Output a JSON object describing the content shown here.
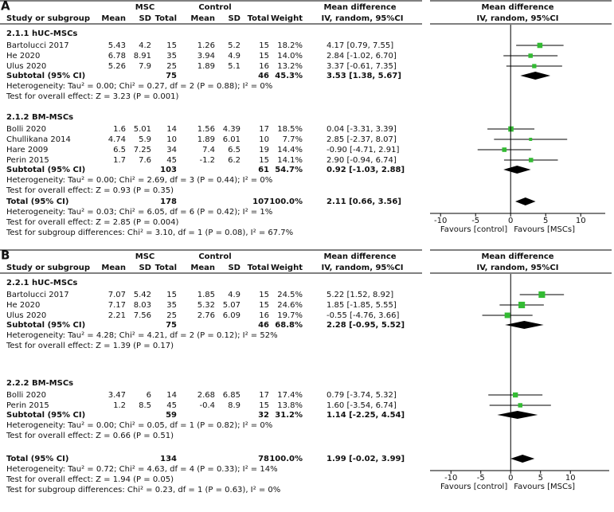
{
  "panels": [
    {
      "letter": "A",
      "group_headers": [
        "MSC",
        "Control",
        "Mean difference",
        "Mean difference"
      ],
      "col_headers": [
        "Study or subgroup",
        "Mean",
        "SD",
        "Total",
        "Mean",
        "SD",
        "Total",
        "Weight",
        "IV, random, 95%CI",
        "IV, random, 95%CI"
      ],
      "subgroups": [
        {
          "name": "2.1.1 hUC-MSCs",
          "studies": [
            {
              "name": "Bartolucci 2017",
              "m1": 5.43,
              "sd1": 4.2,
              "n1": 15,
              "m2": 1.26,
              "sd2": 5.2,
              "n2": 15,
              "weight": {
                "value": 18.2,
                "label": "18.2%"
              },
              "ci": "4.17 [0.79, 7.55]",
              "md": 4.17,
              "lo": 0.79,
              "hi": 7.55
            },
            {
              "name": "He 2020",
              "m1": 6.78,
              "sd1": 8.91,
              "n1": 35,
              "m2": 3.94,
              "sd2": 4.9,
              "n2": 15,
              "weight": {
                "value": 14.0,
                "label": "14.0%"
              },
              "ci": "2.84 [-1.02, 6.70]",
              "md": 2.84,
              "lo": -1.02,
              "hi": 6.7
            },
            {
              "name": "Ulus 2020",
              "m1": 5.26,
              "sd1": 7.9,
              "n1": 25,
              "m2": 1.89,
              "sd2": 5.1,
              "n2": 16,
              "weight": {
                "value": 13.2,
                "label": "13.2%"
              },
              "ci": "3.37 [-0.61, 7.35]",
              "md": 3.37,
              "lo": -0.61,
              "hi": 7.35
            }
          ],
          "subtotal": {
            "label": "Subtotal (95% CI)",
            "n1": 75,
            "n2": 46,
            "weight": {
              "value": 45.3,
              "label": "45.3%"
            },
            "ci": "3.53 [1.38, 5.67]",
            "md": 3.53,
            "lo": 1.38,
            "hi": 5.67
          },
          "heterogeneity": "Heterogeneity: Tau² = 0.00; Chi² = 0.27, df = 2 (P = 0.88); I² = 0%",
          "overall": "Test for overall effect: Z = 3.23 (P = 0.001)"
        },
        {
          "name": "2.1.2 BM-MSCs",
          "studies": [
            {
              "name": "Bolli 2020",
              "m1": 1.6,
              "sd1": 5.01,
              "n1": 14,
              "m2": 1.56,
              "sd2": 4.39,
              "n2": 17,
              "weight": {
                "value": 18.5,
                "label": "18.5%"
              },
              "ci": "0.04 [-3.31, 3.39]",
              "md": 0.04,
              "lo": -3.31,
              "hi": 3.39
            },
            {
              "name": "Chullikana 2014",
              "m1": 4.74,
              "sd1": 5.9,
              "n1": 10,
              "m2": 1.89,
              "sd2": 6.01,
              "n2": 10,
              "weight": {
                "value": 7.7,
                "label": "7.7%"
              },
              "ci": "2.85 [-2.37, 8.07]",
              "md": 2.85,
              "lo": -2.37,
              "hi": 8.07
            },
            {
              "name": "Hare 2009",
              "m1": 6.5,
              "sd1": 7.25,
              "n1": 34,
              "m2": 7.4,
              "sd2": 6.5,
              "n2": 19,
              "weight": {
                "value": 14.4,
                "label": "14.4%"
              },
              "ci": "-0.90 [-4.71, 2.91]",
              "md": -0.9,
              "lo": -4.71,
              "hi": 2.91
            },
            {
              "name": "Perin 2015",
              "m1": 1.7,
              "sd1": 7.6,
              "n1": 45,
              "m2": -1.2,
              "sd2": 6.2,
              "n2": 15,
              "weight": {
                "value": 14.1,
                "label": "14.1%"
              },
              "ci": "2.90 [-0.94, 6.74]",
              "md": 2.9,
              "lo": -0.94,
              "hi": 6.74
            }
          ],
          "subtotal": {
            "label": "Subtotal (95% CI)",
            "n1": 103,
            "n2": 61,
            "weight": {
              "value": 54.7,
              "label": "54.7%"
            },
            "ci": "0.92 [-1.03, 2.88]",
            "md": 0.92,
            "lo": -1.03,
            "hi": 2.88
          },
          "heterogeneity": "Heterogeneity: Tau² = 0.00; Chi² = 2.69, df = 3 (P = 0.44); I² = 0%",
          "overall": "Test for overall effect: Z = 0.93 (P = 0.35)"
        }
      ],
      "total": {
        "label": "Total (95% CI)",
        "n1": 178,
        "n2": 107,
        "weight": {
          "value": 100.0,
          "label": "100.0%"
        },
        "ci": "2.11 [0.66, 3.56]",
        "md": 2.11,
        "lo": 0.66,
        "hi": 3.56
      },
      "heterogeneity": "Heterogeneity: Tau² = 0.03; Chi² = 6.05, df = 6 (P = 0.42); I² = 1%",
      "overall": "Test for overall effect: Z = 2.85 (P = 0.004)",
      "subgroup_diff": "Test for subgroup differences: Chi² = 3.10, df = 1 (P = 0.08), I² = 67.7%",
      "xlim": [
        -11.5,
        13.5
      ],
      "xticks": [
        -10,
        -5,
        0,
        5,
        10
      ],
      "favours_left": "Favours [control]",
      "favours_right": "Favours [MSCs]",
      "color": "#33bb33"
    },
    {
      "letter": "B",
      "group_headers": [
        "MSC",
        "Control",
        "Mean difference",
        "Mean difference"
      ],
      "col_headers": [
        "Study or subgroup",
        "Mean",
        "SD",
        "Total",
        "Mean",
        "SD",
        "Total",
        "Weight",
        "IV, random, 95%CI",
        "IV, random, 95%CI"
      ],
      "subgroups": [
        {
          "name": "2.2.1 hUC-MSCs",
          "studies": [
            {
              "name": "Bartolucci 2017",
              "m1": 7.07,
              "sd1": 5.42,
              "n1": 15,
              "m2": 1.85,
              "sd2": 4.9,
              "n2": 15,
              "weight": {
                "value": 24.5,
                "label": "24.5%"
              },
              "ci": "5.22 [1.52, 8.92]",
              "md": 5.22,
              "lo": 1.52,
              "hi": 8.92
            },
            {
              "name": "He 2020",
              "m1": 7.17,
              "sd1": 8.03,
              "n1": 35,
              "m2": 5.32,
              "sd2": 5.07,
              "n2": 15,
              "weight": {
                "value": 24.6,
                "label": "24.6%"
              },
              "ci": "1.85 [-1.85, 5.55]",
              "md": 1.85,
              "lo": -1.85,
              "hi": 5.55
            },
            {
              "name": "Ulus 2020",
              "m1": 2.21,
              "sd1": 7.56,
              "n1": 25,
              "m2": 2.76,
              "sd2": 6.09,
              "n2": 16,
              "weight": {
                "value": 19.7,
                "label": "19.7%"
              },
              "ci": "-0.55 [-4.76, 3.66]",
              "md": -0.55,
              "lo": -4.76,
              "hi": 3.66
            }
          ],
          "subtotal": {
            "label": "Subtotal (95% CI)",
            "n1": 75,
            "n2": 46,
            "weight": {
              "value": 68.8,
              "label": "68.8%"
            },
            "ci": "2.28 [-0.95, 5.52]",
            "md": 2.28,
            "lo": -0.95,
            "hi": 5.52
          },
          "heterogeneity": "Heterogeneity: Tau² = 4.28; Chi² = 4.21, df = 2 (P = 0.12); I² = 52%",
          "overall": "Test for overall effect: Z = 1.39 (P = 0.17)"
        },
        {
          "name": "2.2.2 BM-MSCs",
          "studies": [
            {
              "name": "Bolli 2020",
              "m1": 3.47,
              "sd1": 6,
              "n1": 14,
              "m2": 2.68,
              "sd2": 6.85,
              "n2": 17,
              "weight": {
                "value": 17.4,
                "label": "17.4%"
              },
              "ci": "0.79 [-3.74, 5.32]",
              "md": 0.79,
              "lo": -3.74,
              "hi": 5.32
            },
            {
              "name": "Perin 2015",
              "m1": 1.2,
              "sd1": 8.5,
              "n1": 45,
              "m2": -0.4,
              "sd2": 8.9,
              "n2": 15,
              "weight": {
                "value": 13.8,
                "label": "13.8%"
              },
              "ci": "1.60 [-3.54, 6.74]",
              "md": 1.6,
              "lo": -3.54,
              "hi": 6.74
            }
          ],
          "subtotal": {
            "label": "Subtotal (95% CI)",
            "n1": 59,
            "n2": 32,
            "weight": {
              "value": 31.2,
              "label": "31.2%"
            },
            "ci": "1.14 [-2.25, 4.54]",
            "md": 1.14,
            "lo": -2.25,
            "hi": 4.54
          },
          "heterogeneity": "Heterogeneity: Tau² = 0.00; Chi² = 0.05, df = 1 (P = 0.82); I² = 0%",
          "overall": "Test for overall effect: Z = 0.66 (P = 0.51)"
        }
      ],
      "total": {
        "label": "Total (95% CI)",
        "n1": 134,
        "n2": 78,
        "weight": {
          "value": 100.0,
          "label": "100.0%"
        },
        "ci": "1.99 [-0.02, 3.99]",
        "md": 1.99,
        "lo": -0.02,
        "hi": 3.99
      },
      "heterogeneity": "Heterogeneity: Tau² = 0.72; Chi² = 4.63, df = 4 (P = 0.33); I² = 14%",
      "overall": "Test for overall effect: Z = 1.94 (P = 0.05)",
      "subgroup_diff": "Test for subgroup differences: Chi² = 0.23, df = 1 (P = 0.63), I² = 0%",
      "xlim": [
        -13.5,
        16.5
      ],
      "xticks": [
        -10,
        -5,
        0,
        5,
        10
      ],
      "favours_left": "Favours [control]",
      "favours_right": "Favours [MSCs]",
      "color": "#33bb33"
    }
  ]
}
